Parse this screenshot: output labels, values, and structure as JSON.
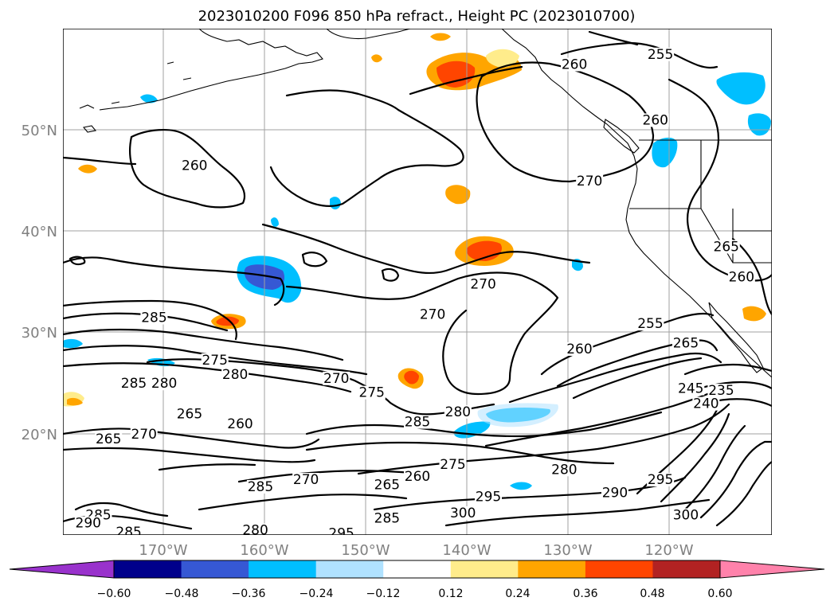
{
  "title": "2023010200 F096 850 hPa refract., Height PC (2023010700)",
  "map": {
    "lat_ticks": [
      "50°N",
      "40°N",
      "30°N",
      "20°N"
    ],
    "lon_ticks": [
      "170°W",
      "160°W",
      "150°W",
      "140°W",
      "130°W",
      "120°W"
    ]
  },
  "colorbar": {
    "ticks": [
      "−0.60",
      "−0.48",
      "−0.36",
      "−0.24",
      "−0.12",
      "0.12",
      "0.24",
      "0.36",
      "0.48",
      "0.60"
    ],
    "colors": [
      "#9932cc",
      "#00008b",
      "#3658d4",
      "#00bfff",
      "#b0e2ff",
      "#ffffff",
      "#ffec8b",
      "#ffa500",
      "#ff4500",
      "#b22222",
      "#ff82ab"
    ]
  },
  "contour_labels": [
    {
      "text": "260",
      "lat": 46.5,
      "lon": -167.0
    },
    {
      "text": "260",
      "lat": 56.5,
      "lon": -129.5
    },
    {
      "text": "255",
      "lat": 57.5,
      "lon": -121.0
    },
    {
      "text": "260",
      "lat": 51.0,
      "lon": -121.5
    },
    {
      "text": "270",
      "lat": 45.0,
      "lon": -128.0
    },
    {
      "text": "265",
      "lat": 38.5,
      "lon": -114.5
    },
    {
      "text": "260",
      "lat": 35.5,
      "lon": -113.0
    },
    {
      "text": "270",
      "lat": 34.8,
      "lon": -138.5
    },
    {
      "text": "285",
      "lat": 31.5,
      "lon": -171.0
    },
    {
      "text": "270",
      "lat": 31.8,
      "lon": -143.5
    },
    {
      "text": "255",
      "lat": 30.9,
      "lon": -122.0
    },
    {
      "text": "265",
      "lat": 29.0,
      "lon": -118.5
    },
    {
      "text": "260",
      "lat": 28.4,
      "lon": -129.0
    },
    {
      "text": "275",
      "lat": 27.3,
      "lon": -165.0
    },
    {
      "text": "280",
      "lat": 25.9,
      "lon": -163.0
    },
    {
      "text": "285",
      "lat": 25.0,
      "lon": -173.0
    },
    {
      "text": "280",
      "lat": 25.0,
      "lon": -170.0
    },
    {
      "text": "270",
      "lat": 25.5,
      "lon": -153.0
    },
    {
      "text": "275",
      "lat": 24.1,
      "lon": -149.5
    },
    {
      "text": "245",
      "lat": 24.5,
      "lon": -118.0
    },
    {
      "text": "240",
      "lat": 23.0,
      "lon": -116.5
    },
    {
      "text": "235",
      "lat": 24.3,
      "lon": -115.0
    },
    {
      "text": "265",
      "lat": 22.0,
      "lon": -167.5
    },
    {
      "text": "260",
      "lat": 21.0,
      "lon": -162.5
    },
    {
      "text": "285",
      "lat": 21.2,
      "lon": -145.0
    },
    {
      "text": "280",
      "lat": 22.2,
      "lon": -141.0
    },
    {
      "text": "270",
      "lat": 20.0,
      "lon": -172.0
    },
    {
      "text": "265",
      "lat": 19.5,
      "lon": -175.5
    },
    {
      "text": "270",
      "lat": 15.5,
      "lon": -156.0
    },
    {
      "text": "265",
      "lat": 15.0,
      "lon": -148.0
    },
    {
      "text": "260",
      "lat": 15.8,
      "lon": -145.0
    },
    {
      "text": "275",
      "lat": 17.0,
      "lon": -141.5
    },
    {
      "text": "280",
      "lat": 16.5,
      "lon": -130.5
    },
    {
      "text": "285",
      "lat": 14.8,
      "lon": -160.5
    },
    {
      "text": "295",
      "lat": 13.8,
      "lon": -138.0
    },
    {
      "text": "290",
      "lat": 14.2,
      "lon": -125.5
    },
    {
      "text": "295",
      "lat": 15.5,
      "lon": -121.0
    },
    {
      "text": "300",
      "lat": 12.2,
      "lon": -140.5
    },
    {
      "text": "285",
      "lat": 11.7,
      "lon": -148.0
    },
    {
      "text": "300",
      "lat": 12.0,
      "lon": -118.5
    },
    {
      "text": "285",
      "lat": 12.0,
      "lon": -176.5
    },
    {
      "text": "290",
      "lat": 11.2,
      "lon": -177.5
    },
    {
      "text": "280",
      "lat": 10.5,
      "lon": -161.0
    },
    {
      "text": "295",
      "lat": 10.2,
      "lon": -152.5
    },
    {
      "text": "285",
      "lat": 10.3,
      "lon": -173.5
    }
  ]
}
